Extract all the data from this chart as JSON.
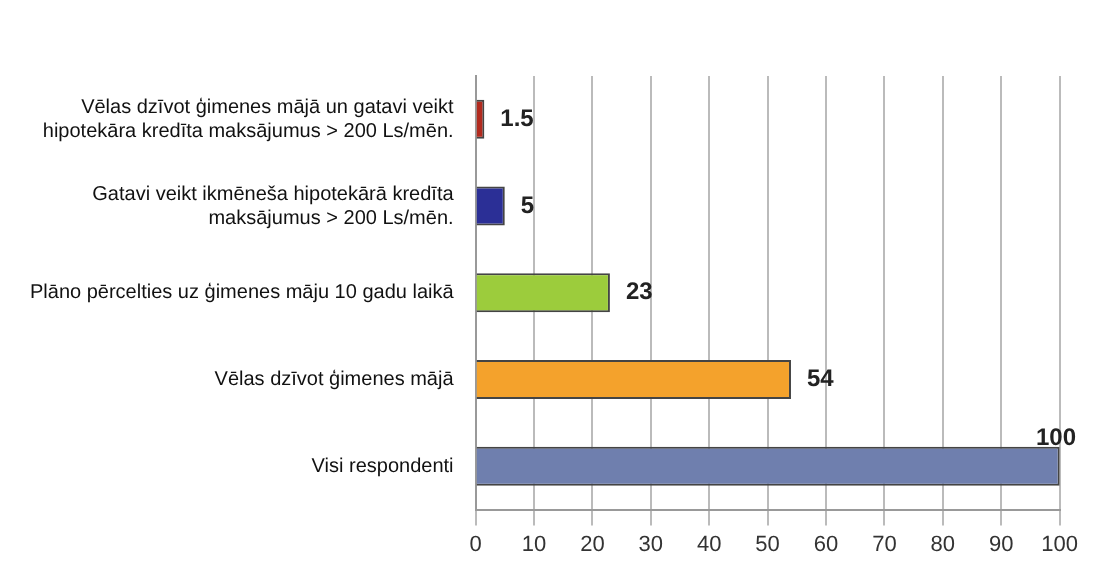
{
  "chart_data": {
    "type": "bar",
    "orientation": "horizontal",
    "categories": [
      "Vēlas dzīvot ģimenes mājā un gatavi veikt hipotekāra kredīta maksājumus > 200 Ls/mēn.",
      "Gatavi veikt ikmēneša hipotekārā kredīta maksājumus > 200 Ls/mēn.",
      "Plāno pērcelties uz ģimenes māju 10 gadu laikā",
      "Vēlas dzīvot ģimenes mājā",
      "Visi respondenti"
    ],
    "values": [
      1.5,
      5,
      23,
      54,
      100
    ],
    "colors": [
      "#b22a1e",
      "#2b2f96",
      "#9ccc3c",
      "#f4a22c",
      "#6f7fae"
    ],
    "xlim": [
      0,
      100
    ],
    "xticks": [
      0,
      10,
      20,
      30,
      40,
      50,
      60,
      70,
      80,
      90,
      100
    ],
    "grid": "x",
    "data_labels": true
  }
}
